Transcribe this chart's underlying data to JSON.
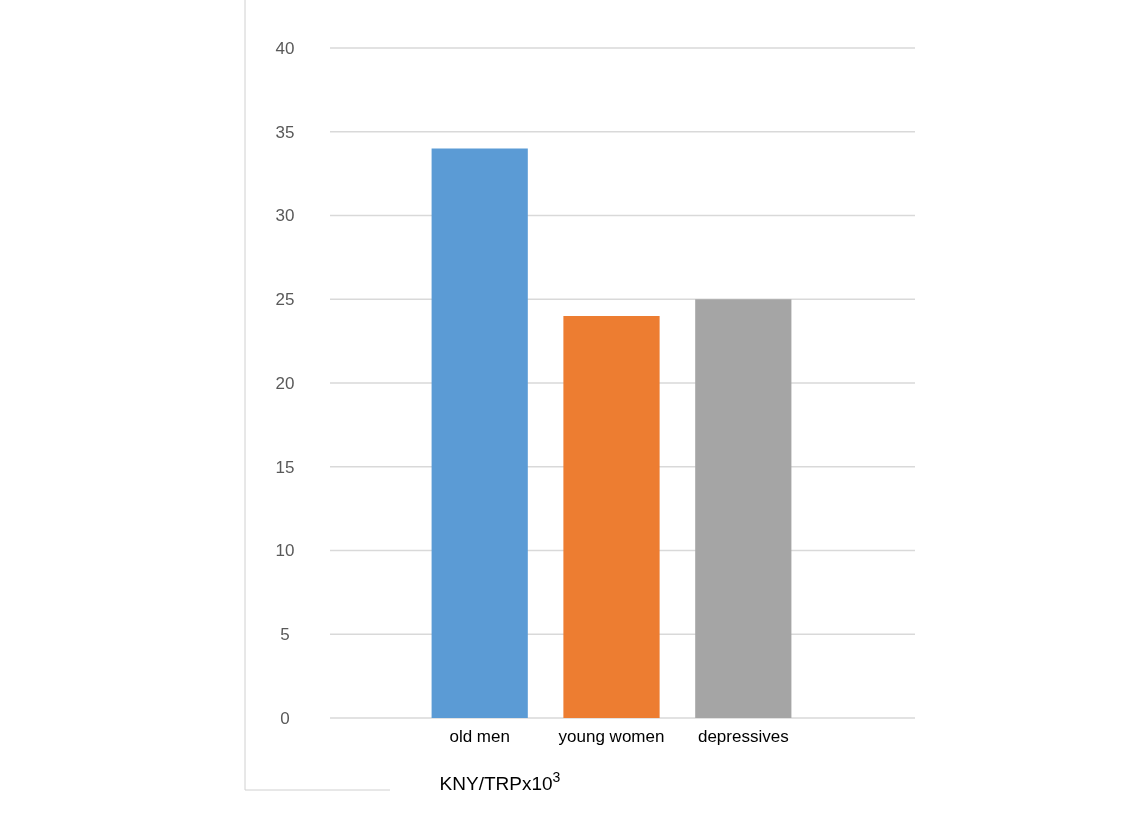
{
  "chart_data": {
    "type": "bar",
    "xlabel": "KNY/TRPx10$^{3}$",
    "categories": [
      "old men",
      "young women",
      "depressives"
    ],
    "values": [
      34,
      24,
      25
    ],
    "colors": [
      "#5b9bd5",
      "#ed7d31",
      "#a5a5a5"
    ],
    "ylim": [
      0,
      40
    ],
    "yticks": [
      0,
      5,
      10,
      15,
      20,
      25,
      30,
      35,
      40
    ],
    "grid": "y"
  }
}
